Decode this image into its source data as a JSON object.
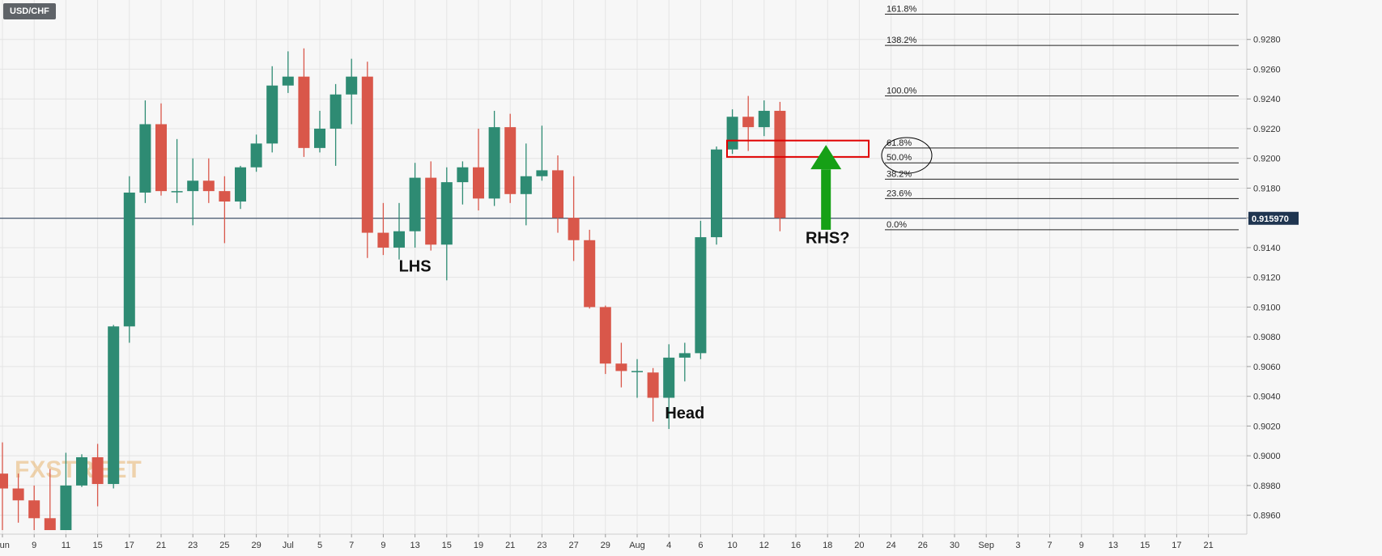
{
  "symbol": "USD/CHF",
  "watermark": "FXSTREET",
  "colors": {
    "up": "#2e8b73",
    "down": "#d9574a",
    "grid": "#e4e4e4",
    "price_line": "#1f3550",
    "fib_line": "#222222",
    "highlight_box": "#e00000",
    "arrow": "#16a016",
    "background": "#f7f7f7",
    "price_badge": "#1f3550"
  },
  "chart_data": {
    "type": "candlestick",
    "title": "USD/CHF",
    "ylim": [
      0.895,
      0.93
    ],
    "y_ticks": [
      "0.8960",
      "0.8980",
      "0.9000",
      "0.9020",
      "0.9040",
      "0.9060",
      "0.9080",
      "0.9100",
      "0.9120",
      "0.9140",
      "0.9160",
      "0.9180",
      "0.9200",
      "0.9220",
      "0.9240",
      "0.9260",
      "0.9280"
    ],
    "x_ticks": [
      {
        "label": "Jun",
        "i": 0
      },
      {
        "label": "9",
        "i": 2
      },
      {
        "label": "11",
        "i": 4
      },
      {
        "label": "15",
        "i": 6
      },
      {
        "label": "17",
        "i": 8
      },
      {
        "label": "21",
        "i": 10
      },
      {
        "label": "23",
        "i": 12
      },
      {
        "label": "25",
        "i": 14
      },
      {
        "label": "29",
        "i": 16
      },
      {
        "label": "Jul",
        "i": 18
      },
      {
        "label": "5",
        "i": 20
      },
      {
        "label": "7",
        "i": 22
      },
      {
        "label": "9",
        "i": 24
      },
      {
        "label": "13",
        "i": 26
      },
      {
        "label": "15",
        "i": 28
      },
      {
        "label": "19",
        "i": 30
      },
      {
        "label": "21",
        "i": 32
      },
      {
        "label": "23",
        "i": 34
      },
      {
        "label": "27",
        "i": 36
      },
      {
        "label": "29",
        "i": 38
      },
      {
        "label": "Aug",
        "i": 40
      },
      {
        "label": "4",
        "i": 42
      },
      {
        "label": "6",
        "i": 44
      },
      {
        "label": "10",
        "i": 46
      },
      {
        "label": "12",
        "i": 48
      },
      {
        "label": "16",
        "i": 50
      },
      {
        "label": "18",
        "i": 52
      },
      {
        "label": "20",
        "i": 54
      },
      {
        "label": "24",
        "i": 56
      },
      {
        "label": "26",
        "i": 58
      },
      {
        "label": "30",
        "i": 60
      },
      {
        "label": "Sep",
        "i": 62
      },
      {
        "label": "3",
        "i": 64
      },
      {
        "label": "7",
        "i": 66
      },
      {
        "label": "9",
        "i": 68
      },
      {
        "label": "13",
        "i": 70
      },
      {
        "label": "15",
        "i": 72
      },
      {
        "label": "17",
        "i": 74
      },
      {
        "label": "21",
        "i": 76
      }
    ],
    "candles": [
      {
        "o": 0.8988,
        "h": 0.9009,
        "l": 0.895,
        "c": 0.8978
      },
      {
        "o": 0.8978,
        "h": 0.8988,
        "l": 0.8955,
        "c": 0.897
      },
      {
        "o": 0.897,
        "h": 0.898,
        "l": 0.895,
        "c": 0.8958
      },
      {
        "o": 0.8958,
        "h": 0.8991,
        "l": 0.895,
        "c": 0.895
      },
      {
        "o": 0.895,
        "h": 0.9002,
        "l": 0.895,
        "c": 0.898
      },
      {
        "o": 0.898,
        "h": 0.9001,
        "l": 0.8979,
        "c": 0.8999
      },
      {
        "o": 0.8999,
        "h": 0.9008,
        "l": 0.8966,
        "c": 0.8981
      },
      {
        "o": 0.8981,
        "h": 0.9088,
        "l": 0.8978,
        "c": 0.9087
      },
      {
        "o": 0.9087,
        "h": 0.9188,
        "l": 0.9076,
        "c": 0.9177
      },
      {
        "o": 0.9177,
        "h": 0.9239,
        "l": 0.917,
        "c": 0.9223
      },
      {
        "o": 0.9223,
        "h": 0.9237,
        "l": 0.9175,
        "c": 0.9178
      },
      {
        "o": 0.9178,
        "h": 0.9213,
        "l": 0.917,
        "c": 0.9178
      },
      {
        "o": 0.9178,
        "h": 0.92,
        "l": 0.9155,
        "c": 0.9185
      },
      {
        "o": 0.9185,
        "h": 0.92,
        "l": 0.917,
        "c": 0.9178
      },
      {
        "o": 0.9178,
        "h": 0.9188,
        "l": 0.9143,
        "c": 0.9171
      },
      {
        "o": 0.9171,
        "h": 0.9195,
        "l": 0.9166,
        "c": 0.9194
      },
      {
        "o": 0.9194,
        "h": 0.9216,
        "l": 0.9191,
        "c": 0.921
      },
      {
        "o": 0.921,
        "h": 0.9262,
        "l": 0.9204,
        "c": 0.9249
      },
      {
        "o": 0.9249,
        "h": 0.9272,
        "l": 0.9244,
        "c": 0.9255
      },
      {
        "o": 0.9255,
        "h": 0.9274,
        "l": 0.9201,
        "c": 0.9207
      },
      {
        "o": 0.9207,
        "h": 0.9232,
        "l": 0.9204,
        "c": 0.922
      },
      {
        "o": 0.922,
        "h": 0.925,
        "l": 0.9195,
        "c": 0.9243
      },
      {
        "o": 0.9243,
        "h": 0.9267,
        "l": 0.9223,
        "c": 0.9255
      },
      {
        "o": 0.9255,
        "h": 0.9265,
        "l": 0.9133,
        "c": 0.915
      },
      {
        "o": 0.915,
        "h": 0.917,
        "l": 0.9135,
        "c": 0.914
      },
      {
        "o": 0.914,
        "h": 0.917,
        "l": 0.9132,
        "c": 0.9151
      },
      {
        "o": 0.9151,
        "h": 0.9197,
        "l": 0.914,
        "c": 0.9187
      },
      {
        "o": 0.9187,
        "h": 0.9198,
        "l": 0.9138,
        "c": 0.9142
      },
      {
        "o": 0.9142,
        "h": 0.9194,
        "l": 0.9118,
        "c": 0.9184
      },
      {
        "o": 0.9184,
        "h": 0.9198,
        "l": 0.9169,
        "c": 0.9194
      },
      {
        "o": 0.9194,
        "h": 0.922,
        "l": 0.9165,
        "c": 0.9173
      },
      {
        "o": 0.9173,
        "h": 0.9232,
        "l": 0.9168,
        "c": 0.9221
      },
      {
        "o": 0.9221,
        "h": 0.923,
        "l": 0.917,
        "c": 0.9176
      },
      {
        "o": 0.9176,
        "h": 0.921,
        "l": 0.9155,
        "c": 0.9188
      },
      {
        "o": 0.9188,
        "h": 0.9222,
        "l": 0.9185,
        "c": 0.9192
      },
      {
        "o": 0.9192,
        "h": 0.9202,
        "l": 0.915,
        "c": 0.916
      },
      {
        "o": 0.916,
        "h": 0.9188,
        "l": 0.9131,
        "c": 0.9145
      },
      {
        "o": 0.9145,
        "h": 0.9152,
        "l": 0.9099,
        "c": 0.91
      },
      {
        "o": 0.91,
        "h": 0.9101,
        "l": 0.9055,
        "c": 0.9062
      },
      {
        "o": 0.9062,
        "h": 0.9076,
        "l": 0.9046,
        "c": 0.9057
      },
      {
        "o": 0.9057,
        "h": 0.9065,
        "l": 0.9039,
        "c": 0.9057
      },
      {
        "o": 0.9056,
        "h": 0.9059,
        "l": 0.9023,
        "c": 0.9039
      },
      {
        "o": 0.9039,
        "h": 0.9075,
        "l": 0.9018,
        "c": 0.9066
      },
      {
        "o": 0.9066,
        "h": 0.9076,
        "l": 0.905,
        "c": 0.9069
      },
      {
        "o": 0.9069,
        "h": 0.9158,
        "l": 0.9065,
        "c": 0.9147
      },
      {
        "o": 0.9147,
        "h": 0.9208,
        "l": 0.9142,
        "c": 0.9206
      },
      {
        "o": 0.9206,
        "h": 0.9233,
        "l": 0.9203,
        "c": 0.9228
      },
      {
        "o": 0.9228,
        "h": 0.9242,
        "l": 0.9205,
        "c": 0.9221
      },
      {
        "o": 0.9221,
        "h": 0.9239,
        "l": 0.9215,
        "c": 0.9232
      },
      {
        "o": 0.9232,
        "h": 0.9238,
        "l": 0.9151,
        "c": 0.916
      }
    ],
    "current_price": {
      "value": 0.91597,
      "label": "0.915970"
    },
    "fibonacci": [
      {
        "label": "161.8%",
        "value": 0.9297
      },
      {
        "label": "138.2%",
        "value": 0.9276
      },
      {
        "label": "100.0%",
        "value": 0.9242
      },
      {
        "label": "61.8%",
        "value": 0.9207
      },
      {
        "label": "50.0%",
        "value": 0.9197
      },
      {
        "label": "38.2%",
        "value": 0.9186
      },
      {
        "label": "23.6%",
        "value": 0.9173
      },
      {
        "label": "0.0%",
        "value": 0.9152
      }
    ],
    "highlight_zone": {
      "top": 0.9212,
      "bottom": 0.9201
    },
    "annotations": [
      {
        "text": "LHS",
        "i": 26,
        "price": 0.9124
      },
      {
        "text": "Head",
        "i": 43,
        "price": 0.9025
      },
      {
        "text": "RHS?",
        "i": 52,
        "price": 0.9143
      }
    ],
    "arrow": {
      "i": 52,
      "from": 0.9152,
      "to": 0.9209
    }
  }
}
